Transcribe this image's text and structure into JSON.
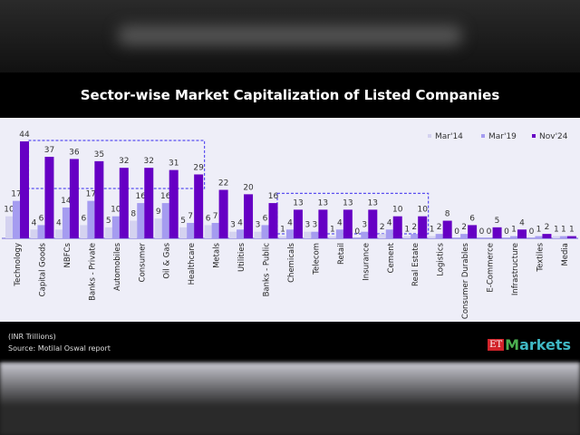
{
  "title": "Sector-wise Market Capitalization of Listed Companies",
  "footer": {
    "unit": "(INR Trillions)",
    "source": "Source: Motilal Oswal report",
    "logo": "ET Markets"
  },
  "chart_data": {
    "type": "bar",
    "title": "Sector-wise Market Capitalization of Listed Companies",
    "ylabel": "",
    "ylim": [
      0,
      46
    ],
    "grid": false,
    "legend": "top-right",
    "categories": [
      "Technology",
      "Capital Goods",
      "NBFCs",
      "Banks - Private",
      "Automobiles",
      "Consumer",
      "Oil & Gas",
      "Healthcare",
      "Metals",
      "Utilities",
      "Banks - Public",
      "Chemicals",
      "Telecom",
      "Retail",
      "Insurance",
      "Cement",
      "Real Estate",
      "Logistics",
      "Consumer Durables",
      "E-Commerce",
      "Infrastructure",
      "Textiles",
      "Media"
    ],
    "series": [
      {
        "name": "Mar'14",
        "color": "#d4d2f0",
        "values": [
          10,
          4,
          4,
          6,
          5,
          8,
          9,
          5,
          6,
          3,
          3,
          1,
          3,
          1,
          0,
          2,
          1,
          1,
          0,
          0,
          0,
          0,
          1
        ]
      },
      {
        "name": "Mar'19",
        "color": "#a59cf0",
        "values": [
          17,
          6,
          14,
          17,
          10,
          16,
          16,
          7,
          7,
          4,
          6,
          4,
          3,
          4,
          3,
          4,
          2,
          2,
          2,
          0,
          1,
          1,
          1
        ]
      },
      {
        "name": "Nov'24",
        "color": "#6600c4",
        "values": [
          44,
          37,
          36,
          35,
          32,
          32,
          31,
          29,
          22,
          20,
          16,
          13,
          13,
          13,
          13,
          10,
          10,
          8,
          6,
          5,
          4,
          2,
          1
        ]
      }
    ],
    "highlight_groups": [
      {
        "from": "Capital Goods",
        "to": "Healthcare"
      },
      {
        "from": "Chemicals",
        "to": "Real Estate"
      }
    ]
  }
}
